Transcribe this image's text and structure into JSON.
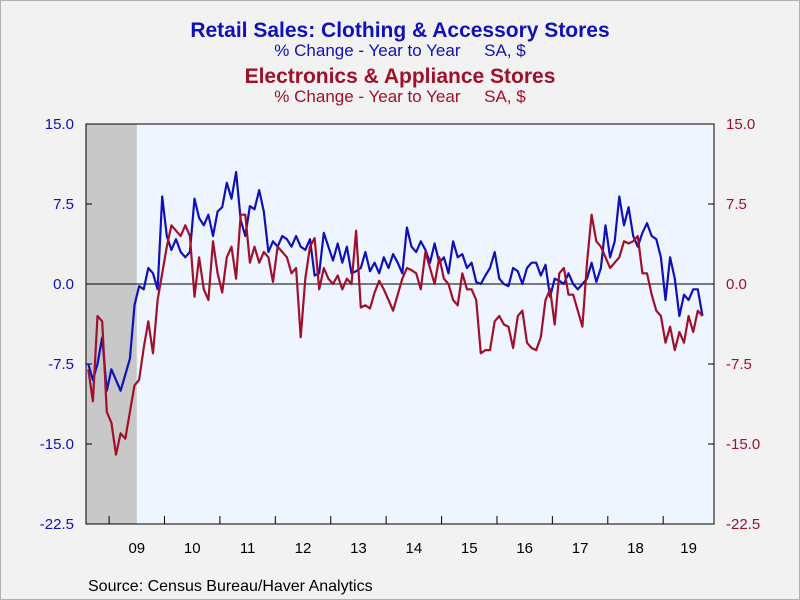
{
  "titles": {
    "series1_title": "Retail Sales: Clothing & Accessory Stores",
    "series1_subtitle": "% Change - Year to Year     SA, $",
    "series2_title": "Electronics & Appliance Stores",
    "series2_subtitle": "% Change - Year to Year     SA, $"
  },
  "source": "Source:  Census Bureau/Haver Analytics",
  "colors": {
    "blue": "#1010b8",
    "red": "#a0102a",
    "plot_bg": "#eef5ff",
    "recession": "#c8c8c8"
  },
  "chart_data": {
    "type": "line",
    "x_start": "2008-08",
    "x_end": "2019-11",
    "ylim": [
      -22.5,
      15.0
    ],
    "yticks": [
      "15.0",
      "7.5",
      "0.0",
      "-7.5",
      "-15.0",
      "-22.5"
    ],
    "ytick_values": [
      15.0,
      7.5,
      0.0,
      -7.5,
      -15.0,
      -22.5
    ],
    "xtick_labels": [
      "09",
      "10",
      "11",
      "12",
      "13",
      "14",
      "15",
      "16",
      "17",
      "18",
      "19"
    ],
    "recession_shading": [
      "2008-08",
      "2009-06"
    ],
    "zero_line": true,
    "series": [
      {
        "name": "Retail Sales: Clothing & Accessory Stores",
        "axis": "left",
        "color": "#1010b8",
        "values": [
          -7.5,
          -9.0,
          -7.5,
          -5.0,
          -10.0,
          -8.0,
          -9.0,
          -10.0,
          -8.5,
          -7.0,
          -2.0,
          -0.2,
          -0.5,
          1.5,
          1.0,
          -0.5,
          8.2,
          4.5,
          3.2,
          4.2,
          3.0,
          2.5,
          3.0,
          8.0,
          6.2,
          5.5,
          6.5,
          4.5,
          6.8,
          7.2,
          9.5,
          8.0,
          10.5,
          6.0,
          4.5,
          7.3,
          7.0,
          8.8,
          6.8,
          3.0,
          4.0,
          3.5,
          4.5,
          4.2,
          3.5,
          4.5,
          3.5,
          3.2,
          4.2,
          0.8,
          1.0,
          4.8,
          3.5,
          2.2,
          3.8,
          2.0,
          3.5,
          1.0,
          1.2,
          1.5,
          3.0,
          1.2,
          2.0,
          1.0,
          2.5,
          1.5,
          2.8,
          2.0,
          1.0,
          5.3,
          3.5,
          3.0,
          4.0,
          3.2,
          2.0,
          3.8,
          2.0,
          2.5,
          1.0,
          4.0,
          2.5,
          2.8,
          1.5,
          2.0,
          0.2,
          0.0,
          0.8,
          1.5,
          3.0,
          0.5,
          0.0,
          -0.2,
          1.5,
          1.2,
          0.0,
          1.5,
          2.0,
          2.0,
          0.8,
          1.8,
          -1.2,
          0.5,
          0.3,
          0.0,
          1.0,
          0.0,
          -0.5,
          0.0,
          0.5,
          2.0,
          0.2,
          1.5,
          5.5,
          2.5,
          4.0,
          8.2,
          5.5,
          7.2,
          4.5,
          3.5,
          4.8,
          5.7,
          4.5,
          4.2,
          2.5,
          -1.5,
          2.5,
          0.5,
          -3.0,
          -1.0,
          -1.5,
          -0.5,
          -0.5,
          -3.0
        ]
      },
      {
        "name": "Electronics & Appliance Stores",
        "axis": "right",
        "color": "#a0102a",
        "values": [
          -8.0,
          -11.0,
          -3.0,
          -3.5,
          -12.0,
          -13.0,
          -16.0,
          -14.0,
          -14.5,
          -12.0,
          -9.5,
          -9.0,
          -6.0,
          -3.5,
          -6.5,
          -1.5,
          1.0,
          3.5,
          5.5,
          5.0,
          4.5,
          5.5,
          4.5,
          -1.2,
          2.5,
          -0.5,
          -1.5,
          4.0,
          1.0,
          -0.8,
          2.5,
          3.5,
          0.5,
          6.5,
          6.5,
          2.0,
          3.5,
          2.0,
          3.0,
          2.5,
          0.2,
          3.5,
          3.0,
          2.5,
          1.0,
          1.5,
          -5.0,
          0.5,
          3.5,
          4.3,
          -0.5,
          1.5,
          0.5,
          0.0,
          0.8,
          -0.5,
          0.5,
          0.0,
          5.0,
          -2.2,
          -2.0,
          -2.3,
          -0.8,
          0.3,
          -0.5,
          -1.5,
          -2.5,
          -1.0,
          0.5,
          1.5,
          1.3,
          1.0,
          -0.5,
          3.0,
          1.5,
          0.0,
          2.5,
          0.5,
          0.0,
          -1.5,
          -2.0,
          1.0,
          -0.5,
          -0.5,
          -1.5,
          -6.5,
          -6.2,
          -6.2,
          -3.5,
          -3.0,
          -3.8,
          -4.0,
          -6.0,
          -3.0,
          -2.5,
          -5.5,
          -6.0,
          -6.2,
          -5.0,
          -1.5,
          -0.5,
          -3.8,
          1.0,
          1.5,
          -1.0,
          -1.0,
          -2.5,
          -4.0,
          2.0,
          6.5,
          4.0,
          3.5,
          2.5,
          1.5,
          2.0,
          2.5,
          4.0,
          3.8,
          4.0,
          4.5,
          1.0,
          1.0,
          -1.0,
          -2.5,
          -3.0,
          -5.5,
          -4.0,
          -6.2,
          -4.5,
          -5.5,
          -3.0,
          -4.5,
          -2.5,
          -3.0
        ]
      }
    ]
  }
}
